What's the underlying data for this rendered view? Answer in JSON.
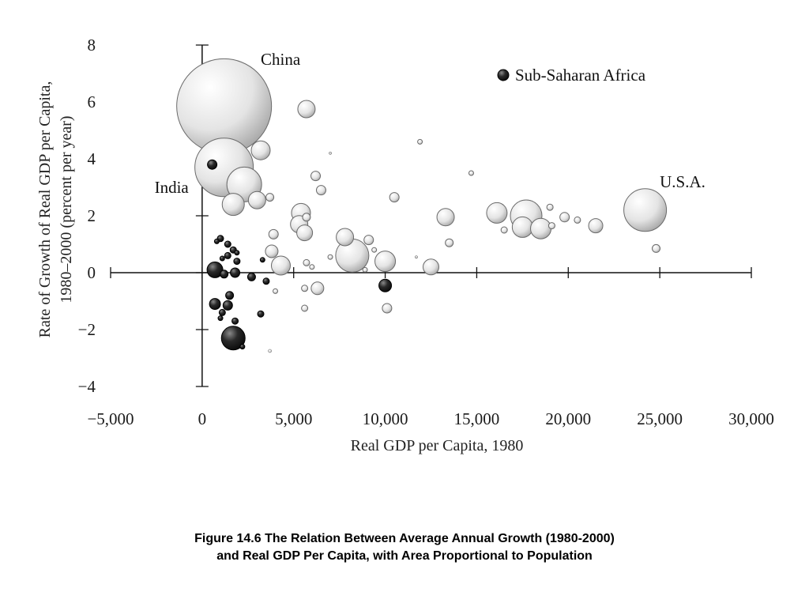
{
  "caption": {
    "line1": "Figure 14.6 The Relation Between Average Annual Growth (1980-2000)",
    "line2": "and Real GDP Per Capita, with Area Proportional to Population"
  },
  "chart_data": {
    "type": "scatter",
    "title": "",
    "xlabel": "Real GDP per Capita, 1980",
    "ylabel_lines": [
      "Rate of Growth of Real GDP per Capita,",
      "1980–2000 (percent per year)"
    ],
    "xlim": [
      -5000,
      30000
    ],
    "ylim": [
      -4,
      8
    ],
    "x_ticks": [
      -5000,
      0,
      5000,
      10000,
      15000,
      20000,
      25000,
      30000
    ],
    "x_tick_labels": [
      "−5,000",
      "0",
      "5,000",
      "10,000",
      "15,000",
      "20,000",
      "25,000",
      "30,000"
    ],
    "y_ticks": [
      8,
      6,
      4,
      2,
      0,
      -2,
      -4
    ],
    "y_tick_labels": [
      "8",
      "6",
      "4",
      "2",
      "0",
      "−2",
      "−4"
    ],
    "grid": false,
    "legend_position": "top-right",
    "legend": [
      {
        "label": "Sub-Saharan Africa",
        "color": "#1c1c1c"
      }
    ],
    "annotations": [
      {
        "text": "China",
        "x": 3200,
        "y": 7.3
      },
      {
        "text": "India",
        "x": -2600,
        "y": 2.8
      },
      {
        "text": "U.S.A.",
        "x": 25000,
        "y": 3.0
      }
    ],
    "colors": {
      "other": "#e6e6e6",
      "sub_saharan_africa": "#1c1c1c"
    },
    "series": [
      {
        "name": "Sub-Saharan Africa",
        "points": [
          {
            "x": 550,
            "y": 3.8,
            "r": 6
          },
          {
            "x": 1000,
            "y": 1.2,
            "r": 4
          },
          {
            "x": 800,
            "y": 1.1,
            "r": 3
          },
          {
            "x": 1400,
            "y": 1.0,
            "r": 4
          },
          {
            "x": 1700,
            "y": 0.8,
            "r": 4
          },
          {
            "x": 1400,
            "y": 0.6,
            "r": 4
          },
          {
            "x": 1100,
            "y": 0.5,
            "r": 3
          },
          {
            "x": 1900,
            "y": 0.4,
            "r": 4
          },
          {
            "x": 1900,
            "y": 0.7,
            "r": 3
          },
          {
            "x": 3300,
            "y": 0.45,
            "r": 3
          },
          {
            "x": 700,
            "y": 0.1,
            "r": 10
          },
          {
            "x": 1800,
            "y": 0.0,
            "r": 6
          },
          {
            "x": 1200,
            "y": -0.05,
            "r": 5
          },
          {
            "x": 2700,
            "y": -0.15,
            "r": 5
          },
          {
            "x": 3500,
            "y": -0.3,
            "r": 4
          },
          {
            "x": 1500,
            "y": -0.8,
            "r": 5
          },
          {
            "x": 700,
            "y": -1.1,
            "r": 7
          },
          {
            "x": 1400,
            "y": -1.15,
            "r": 6
          },
          {
            "x": 1100,
            "y": -1.4,
            "r": 4
          },
          {
            "x": 3200,
            "y": -1.45,
            "r": 4
          },
          {
            "x": 1000,
            "y": -1.6,
            "r": 3
          },
          {
            "x": 1800,
            "y": -1.7,
            "r": 4
          },
          {
            "x": 1700,
            "y": -2.3,
            "r": 15
          },
          {
            "x": 2200,
            "y": -2.6,
            "r": 3
          },
          {
            "x": 10000,
            "y": -0.45,
            "r": 8
          }
        ]
      },
      {
        "name": "Other countries",
        "points": [
          {
            "x": 1200,
            "y": 5.85,
            "r": 60
          },
          {
            "x": 1200,
            "y": 3.7,
            "r": 37
          },
          {
            "x": 2300,
            "y": 3.1,
            "r": 22
          },
          {
            "x": 1700,
            "y": 2.4,
            "r": 14
          },
          {
            "x": 3200,
            "y": 4.3,
            "r": 12
          },
          {
            "x": 3000,
            "y": 2.55,
            "r": 11
          },
          {
            "x": 5700,
            "y": 5.75,
            "r": 11
          },
          {
            "x": 6200,
            "y": 3.4,
            "r": 6
          },
          {
            "x": 6500,
            "y": 2.9,
            "r": 6
          },
          {
            "x": 3700,
            "y": 2.65,
            "r": 5
          },
          {
            "x": 5400,
            "y": 2.1,
            "r": 12
          },
          {
            "x": 5300,
            "y": 1.7,
            "r": 11
          },
          {
            "x": 5600,
            "y": 1.4,
            "r": 10
          },
          {
            "x": 5700,
            "y": 1.95,
            "r": 5
          },
          {
            "x": 3900,
            "y": 1.35,
            "r": 6
          },
          {
            "x": 3800,
            "y": 0.75,
            "r": 8
          },
          {
            "x": 4300,
            "y": 0.25,
            "r": 12
          },
          {
            "x": 5700,
            "y": 0.35,
            "r": 4
          },
          {
            "x": 6000,
            "y": 0.2,
            "r": 3
          },
          {
            "x": 6300,
            "y": -0.55,
            "r": 8
          },
          {
            "x": 5600,
            "y": -0.55,
            "r": 4
          },
          {
            "x": 5600,
            "y": -1.25,
            "r": 4
          },
          {
            "x": 4000,
            "y": -0.65,
            "r": 3
          },
          {
            "x": 7000,
            "y": 0.55,
            "r": 3
          },
          {
            "x": 7800,
            "y": 1.25,
            "r": 11
          },
          {
            "x": 8200,
            "y": 0.6,
            "r": 21
          },
          {
            "x": 8900,
            "y": 0.1,
            "r": 3
          },
          {
            "x": 9100,
            "y": 1.15,
            "r": 6
          },
          {
            "x": 9400,
            "y": 0.8,
            "r": 3
          },
          {
            "x": 10000,
            "y": 0.4,
            "r": 13
          },
          {
            "x": 10500,
            "y": 2.65,
            "r": 6
          },
          {
            "x": 10100,
            "y": -1.25,
            "r": 6
          },
          {
            "x": 12500,
            "y": 0.2,
            "r": 10
          },
          {
            "x": 13300,
            "y": 1.95,
            "r": 11
          },
          {
            "x": 13500,
            "y": 1.05,
            "r": 5
          },
          {
            "x": 14700,
            "y": 3.5,
            "r": 3
          },
          {
            "x": 16100,
            "y": 2.1,
            "r": 13
          },
          {
            "x": 16500,
            "y": 1.5,
            "r": 4
          },
          {
            "x": 17500,
            "y": 1.6,
            "r": 13
          },
          {
            "x": 17700,
            "y": 2.0,
            "r": 20
          },
          {
            "x": 18500,
            "y": 1.55,
            "r": 13
          },
          {
            "x": 19000,
            "y": 2.3,
            "r": 4
          },
          {
            "x": 19100,
            "y": 1.65,
            "r": 4
          },
          {
            "x": 19800,
            "y": 1.95,
            "r": 6
          },
          {
            "x": 20500,
            "y": 1.85,
            "r": 4
          },
          {
            "x": 21500,
            "y": 1.65,
            "r": 9
          },
          {
            "x": 24200,
            "y": 2.2,
            "r": 27
          },
          {
            "x": 24800,
            "y": 0.85,
            "r": 5
          },
          {
            "x": 11900,
            "y": 4.6,
            "r": 3
          },
          {
            "x": 7000,
            "y": 4.2,
            "r": 1.5
          },
          {
            "x": 11700,
            "y": 0.55,
            "r": 1.5
          },
          {
            "x": 3700,
            "y": -2.75,
            "r": 2
          }
        ]
      }
    ]
  }
}
